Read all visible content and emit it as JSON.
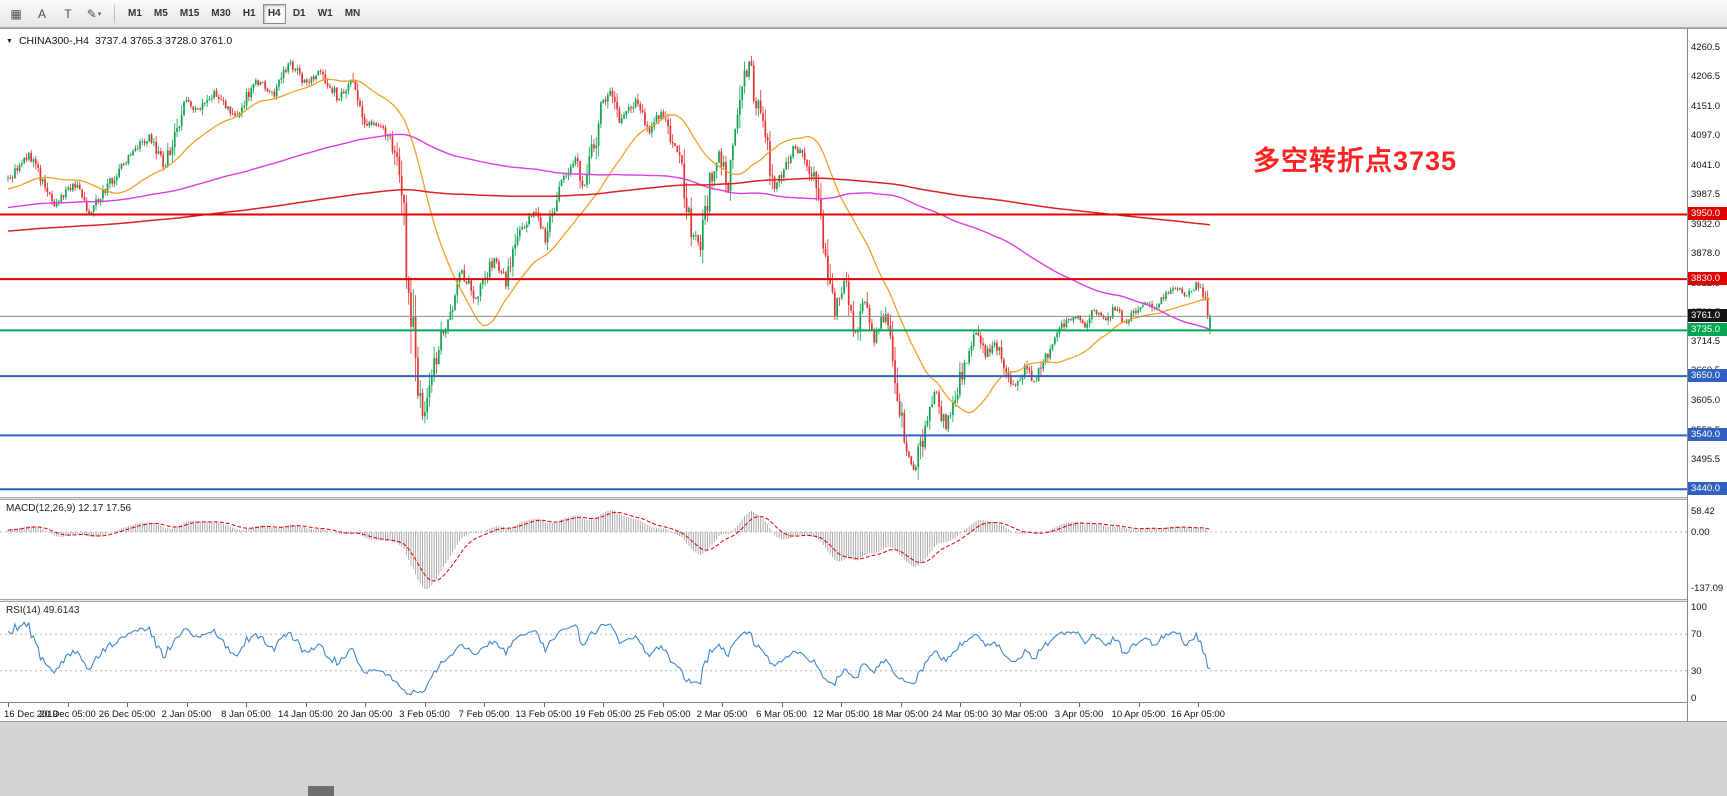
{
  "toolbar": {
    "dropdown_glyph": "▾",
    "tools": [
      {
        "name": "grid-tool",
        "glyph": "▦"
      },
      {
        "name": "text-label-tool",
        "glyph": "A"
      },
      {
        "name": "text-box-tool",
        "glyph": "T"
      },
      {
        "name": "drawing-tools",
        "glyph": "✎",
        "dropdown": true
      }
    ],
    "timeframes": [
      {
        "label": "M1",
        "active": false
      },
      {
        "label": "M5",
        "active": false
      },
      {
        "label": "M15",
        "active": false
      },
      {
        "label": "M30",
        "active": false
      },
      {
        "label": "H1",
        "active": false
      },
      {
        "label": "H4",
        "active": true
      },
      {
        "label": "D1",
        "active": false
      },
      {
        "label": "W1",
        "active": false
      },
      {
        "label": "MN",
        "active": false
      }
    ]
  },
  "chart": {
    "symbol_period": "CHINA300-,H4",
    "ohlc": "3737.4 3765.3 3728.0 3761.0",
    "symbol_dropdown_glyph": "▼",
    "annotation": {
      "text": "多空转折点3735",
      "color": "#ff2222"
    },
    "candle_up": "#0ca34e",
    "candle_down": "#e43030",
    "current": {
      "price": 3761.0,
      "label": "3761.0",
      "tag_bg": "#141414"
    },
    "levels": [
      {
        "price": 3950.0,
        "label": "3950.0",
        "color": "#e00000"
      },
      {
        "price": 3830.0,
        "label": "3830.0",
        "color": "#e00000"
      },
      {
        "price": 3735.0,
        "label": "3735.0",
        "color": "#00a651"
      },
      {
        "price": 3650.0,
        "label": "3650.0",
        "color": "#3060c0"
      },
      {
        "price": 3540.0,
        "label": "3540.0",
        "color": "#3060c0"
      },
      {
        "price": 3440.0,
        "label": "3440.0",
        "color": "#3060c0"
      }
    ],
    "price_axis": {
      "labels": [
        "4260.5",
        "4206.5",
        "4151.0",
        "4097.0",
        "4041.0",
        "3987.5",
        "3932.0",
        "3878.0",
        "3822.5",
        "3768.5",
        "3714.5",
        "3660.5",
        "3605.0",
        "3550.5",
        "3495.5"
      ]
    },
    "moving_averages": [
      {
        "period": 34,
        "color": "#f0a028",
        "width": 1.3
      },
      {
        "period": 180,
        "color": "#e03ce0",
        "width": 1.4
      },
      {
        "period": 500,
        "color": "#e02020",
        "width": 1.5
      }
    ],
    "last_bar": {
      "open": 3737.4,
      "high": 3765.3,
      "low": 3728.0,
      "close": 3761.0
    },
    "prehistory_anchors": [
      [
        -520,
        3880
      ],
      [
        -460,
        3850
      ],
      [
        -400,
        3910
      ],
      [
        -340,
        3870
      ],
      [
        -280,
        3930
      ],
      [
        -220,
        3900
      ],
      [
        -160,
        3960
      ],
      [
        -100,
        3930
      ],
      [
        -50,
        3985
      ],
      [
        -15,
        3995
      ]
    ],
    "series_anchors": [
      [
        0,
        4015
      ],
      [
        9,
        4060
      ],
      [
        20,
        3970
      ],
      [
        29,
        4005
      ],
      [
        35,
        3955
      ],
      [
        44,
        4010
      ],
      [
        53,
        4065
      ],
      [
        61,
        4095
      ],
      [
        68,
        4040
      ],
      [
        76,
        4160
      ],
      [
        83,
        4140
      ],
      [
        89,
        4180
      ],
      [
        98,
        4130
      ],
      [
        107,
        4200
      ],
      [
        115,
        4175
      ],
      [
        122,
        4235
      ],
      [
        128,
        4195
      ],
      [
        135,
        4215
      ],
      [
        143,
        4165
      ],
      [
        148,
        4200
      ],
      [
        155,
        4120
      ],
      [
        163,
        4105
      ],
      [
        167,
        4060
      ],
      [
        170,
        3975
      ],
      [
        174,
        3770
      ],
      [
        176,
        3660
      ],
      [
        179,
        3570
      ],
      [
        181,
        3610
      ],
      [
        187,
        3730
      ],
      [
        191,
        3770
      ],
      [
        196,
        3840
      ],
      [
        202,
        3795
      ],
      [
        210,
        3870
      ],
      [
        215,
        3820
      ],
      [
        221,
        3920
      ],
      [
        228,
        3955
      ],
      [
        232,
        3900
      ],
      [
        238,
        4010
      ],
      [
        245,
        4050
      ],
      [
        249,
        4000
      ],
      [
        256,
        4140
      ],
      [
        260,
        4185
      ],
      [
        264,
        4120
      ],
      [
        271,
        4160
      ],
      [
        277,
        4105
      ],
      [
        282,
        4140
      ],
      [
        287,
        4085
      ],
      [
        290,
        4050
      ],
      [
        295,
        3920
      ],
      [
        299,
        3890
      ],
      [
        303,
        4010
      ],
      [
        307,
        4065
      ],
      [
        311,
        4000
      ],
      [
        316,
        4170
      ],
      [
        320,
        4230
      ],
      [
        324,
        4140
      ],
      [
        327,
        4085
      ],
      [
        331,
        4000
      ],
      [
        336,
        4040
      ],
      [
        340,
        4075
      ],
      [
        344,
        4055
      ],
      [
        348,
        4010
      ],
      [
        353,
        3880
      ],
      [
        357,
        3770
      ],
      [
        361,
        3825
      ],
      [
        366,
        3730
      ],
      [
        370,
        3790
      ],
      [
        374,
        3715
      ],
      [
        379,
        3770
      ],
      [
        383,
        3640
      ],
      [
        387,
        3530
      ],
      [
        392,
        3475
      ],
      [
        396,
        3565
      ],
      [
        400,
        3620
      ],
      [
        405,
        3550
      ],
      [
        409,
        3600
      ],
      [
        413,
        3675
      ],
      [
        418,
        3730
      ],
      [
        422,
        3685
      ],
      [
        426,
        3715
      ],
      [
        431,
        3660
      ],
      [
        435,
        3630
      ],
      [
        439,
        3670
      ],
      [
        443,
        3640
      ],
      [
        448,
        3685
      ],
      [
        452,
        3715
      ],
      [
        456,
        3745
      ],
      [
        461,
        3760
      ],
      [
        465,
        3745
      ],
      [
        469,
        3770
      ],
      [
        474,
        3755
      ],
      [
        478,
        3775
      ],
      [
        482,
        3750
      ],
      [
        487,
        3770
      ],
      [
        491,
        3790
      ],
      [
        495,
        3775
      ],
      [
        500,
        3800
      ],
      [
        504,
        3815
      ],
      [
        508,
        3800
      ],
      [
        513,
        3820
      ],
      [
        517,
        3790
      ],
      [
        519,
        3761
      ]
    ]
  },
  "macd": {
    "label": "MACD(12,26,9) 12.17 17.56",
    "fast": 12,
    "slow": 26,
    "signal": 9,
    "axis": [
      "58.42",
      "0.00",
      "-137.09"
    ],
    "hist_color": "#a2a2a2",
    "signal_color": "#dd0000"
  },
  "rsi": {
    "label": "RSI(14) 49.6143",
    "period": 14,
    "axis": [
      "100",
      "70",
      "30",
      "0"
    ],
    "levels": [
      70,
      30
    ],
    "line_color": "#3f87cf"
  },
  "time_axis": {
    "labels": [
      "16 Dec 2019",
      "20 Dec 05:00",
      "26 Dec 05:00",
      "2 Jan 05:00",
      "8 Jan 05:00",
      "14 Jan 05:00",
      "20 Jan 05:00",
      "3 Feb 05:00",
      "7 Feb 05:00",
      "13 Feb 05:00",
      "19 Feb 05:00",
      "25 Feb 05:00",
      "2 Mar 05:00",
      "6 Mar 05:00",
      "12 Mar 05:00",
      "18 Mar 05:00",
      "24 Mar 05:00",
      "30 Mar 05:00",
      "3 Apr 05:00",
      "10 Apr 05:00",
      "16 Apr 05:00"
    ]
  }
}
